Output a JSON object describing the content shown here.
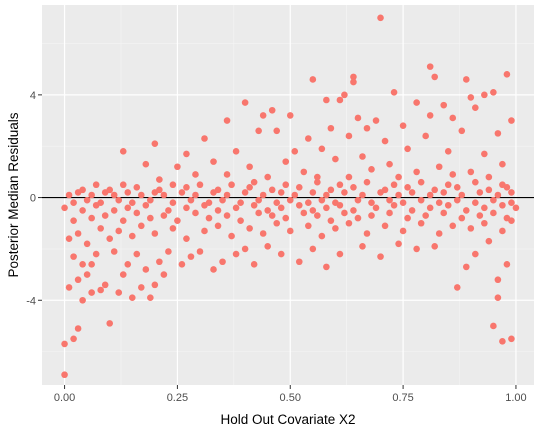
{
  "chart_data": {
    "type": "scatter",
    "title": "",
    "xlabel": "Hold Out Covariate X2",
    "ylabel": "Posterior Median Residuals",
    "xlim": [
      -0.05,
      1.04
    ],
    "ylim": [
      -7.3,
      7.5
    ],
    "x_ticks": [
      0.0,
      0.25,
      0.5,
      0.75,
      1.0
    ],
    "x_tick_labels": [
      "0.00",
      "0.25",
      "0.50",
      "0.75",
      "1.00"
    ],
    "y_ticks": [
      -4,
      0,
      4
    ],
    "y_tick_labels": [
      "-4",
      "0",
      "4"
    ],
    "minor_y_ticks": [
      -6,
      -2,
      2,
      6
    ],
    "minor_x_ticks": [
      0.125,
      0.375,
      0.625,
      0.875
    ],
    "grid": true,
    "reference_line_y": 0,
    "point_color": "#F8766D",
    "panel_color": "#EBEBEB",
    "reference_line_color": "#000000",
    "legend": "none",
    "series": [
      {
        "points": [
          [
            0.7,
            7.0
          ],
          [
            0.81,
            5.1
          ],
          [
            0.82,
            4.7
          ],
          [
            0.55,
            4.6
          ],
          [
            0.64,
            4.7
          ],
          [
            0.64,
            4.5
          ],
          [
            0.89,
            4.6
          ],
          [
            0.98,
            4.8
          ],
          [
            0.62,
            4.0
          ],
          [
            0.61,
            3.8
          ],
          [
            0.73,
            4.1
          ],
          [
            0.58,
            3.8
          ],
          [
            0.93,
            4.0
          ],
          [
            0.95,
            4.1
          ],
          [
            0.4,
            3.7
          ],
          [
            0.46,
            3.4
          ],
          [
            0.78,
            3.7
          ],
          [
            0.84,
            3.6
          ],
          [
            0.9,
            3.9
          ],
          [
            0.91,
            3.5
          ],
          [
            0.5,
            3.2
          ],
          [
            0.36,
            3.0
          ],
          [
            0.44,
            3.2
          ],
          [
            0.65,
            3.1
          ],
          [
            0.69,
            3.0
          ],
          [
            0.81,
            3.2
          ],
          [
            0.99,
            3.0
          ],
          [
            0.86,
            3.1
          ],
          [
            0.75,
            2.8
          ],
          [
            0.59,
            2.7
          ],
          [
            0.67,
            2.7
          ],
          [
            0.43,
            2.6
          ],
          [
            0.47,
            2.6
          ],
          [
            0.54,
            2.3
          ],
          [
            0.63,
            2.4
          ],
          [
            0.71,
            2.2
          ],
          [
            0.8,
            2.4
          ],
          [
            0.88,
            2.6
          ],
          [
            0.96,
            2.5
          ],
          [
            0.31,
            2.3
          ],
          [
            0.2,
            2.1
          ],
          [
            0.13,
            1.8
          ],
          [
            0.27,
            1.7
          ],
          [
            0.38,
            1.8
          ],
          [
            0.51,
            1.8
          ],
          [
            0.57,
            1.9
          ],
          [
            0.66,
            1.6
          ],
          [
            0.76,
            1.9
          ],
          [
            0.85,
            1.8
          ],
          [
            0.93,
            1.7
          ],
          [
            0.33,
            1.4
          ],
          [
            0.41,
            1.2
          ],
          [
            0.49,
            1.4
          ],
          [
            0.6,
            1.5
          ],
          [
            0.72,
            1.3
          ],
          [
            0.83,
            1.2
          ],
          [
            0.97,
            1.3
          ],
          [
            0.18,
            1.3
          ],
          [
            0.25,
            1.2
          ],
          [
            0.53,
            1.0
          ],
          [
            0.68,
            1.1
          ],
          [
            0.78,
            1.0
          ],
          [
            0.9,
            1.0
          ],
          [
            0.29,
            0.9
          ],
          [
            0.36,
            0.9
          ],
          [
            0.45,
            0.8
          ],
          [
            0.56,
            0.8
          ],
          [
            0.63,
            0.8
          ],
          [
            0.74,
            0.8
          ],
          [
            0.86,
            0.9
          ],
          [
            0.94,
            0.8
          ],
          [
            0.21,
            0.7
          ],
          [
            0.0,
            -6.9
          ],
          [
            0.0,
            -5.7
          ],
          [
            0.02,
            -5.5
          ],
          [
            0.03,
            -5.1
          ],
          [
            0.01,
            -3.5
          ],
          [
            0.04,
            -4.0
          ],
          [
            0.06,
            -3.7
          ],
          [
            0.08,
            -3.6
          ],
          [
            0.09,
            -3.4
          ],
          [
            0.1,
            -4.9
          ],
          [
            0.03,
            -3.2
          ],
          [
            0.05,
            -3.0
          ],
          [
            0.06,
            -2.6
          ],
          [
            0.04,
            -2.6
          ],
          [
            0.02,
            -2.3
          ],
          [
            0.07,
            -2.2
          ],
          [
            0.12,
            -3.7
          ],
          [
            0.13,
            -3.0
          ],
          [
            0.14,
            -2.6
          ],
          [
            0.15,
            -3.9
          ],
          [
            0.17,
            -3.5
          ],
          [
            0.18,
            -2.8
          ],
          [
            0.19,
            -3.9
          ],
          [
            0.2,
            -3.4
          ],
          [
            0.21,
            -2.5
          ],
          [
            0.22,
            -3.0
          ],
          [
            0.11,
            -2.1
          ],
          [
            0.16,
            -2.2
          ],
          [
            0.23,
            -2.1
          ],
          [
            0.26,
            -2.6
          ],
          [
            0.28,
            -2.3
          ],
          [
            0.3,
            -2.1
          ],
          [
            0.33,
            -2.8
          ],
          [
            0.35,
            -2.5
          ],
          [
            0.38,
            -2.2
          ],
          [
            0.4,
            -2.0
          ],
          [
            0.42,
            -2.6
          ],
          [
            0.45,
            -1.9
          ],
          [
            0.48,
            -2.2
          ],
          [
            0.52,
            -2.5
          ],
          [
            0.55,
            -2.0
          ],
          [
            0.58,
            -2.7
          ],
          [
            0.61,
            -2.2
          ],
          [
            0.66,
            -1.9
          ],
          [
            0.7,
            -2.3
          ],
          [
            0.74,
            -1.8
          ],
          [
            0.78,
            -2.0
          ],
          [
            0.82,
            -1.9
          ],
          [
            0.87,
            -3.5
          ],
          [
            0.89,
            -2.7
          ],
          [
            0.91,
            -2.2
          ],
          [
            0.94,
            -1.7
          ],
          [
            0.95,
            -5.0
          ],
          [
            0.96,
            -3.2
          ],
          [
            0.97,
            -5.6
          ],
          [
            0.98,
            -2.6
          ],
          [
            0.99,
            -5.5
          ],
          [
            0.96,
            -3.9
          ],
          [
            0.01,
            -1.6
          ],
          [
            0.03,
            -1.4
          ],
          [
            0.05,
            -1.8
          ],
          [
            0.08,
            -1.2
          ],
          [
            0.1,
            -1.6
          ],
          [
            0.12,
            -1.3
          ],
          [
            0.15,
            -1.5
          ],
          [
            0.17,
            -1.1
          ],
          [
            0.2,
            -1.4
          ],
          [
            0.24,
            -1.2
          ],
          [
            0.27,
            -1.6
          ],
          [
            0.31,
            -1.3
          ],
          [
            0.34,
            -1.1
          ],
          [
            0.37,
            -1.5
          ],
          [
            0.41,
            -1.2
          ],
          [
            0.44,
            -1.4
          ],
          [
            0.47,
            -1.0
          ],
          [
            0.5,
            -1.3
          ],
          [
            0.54,
            -1.1
          ],
          [
            0.57,
            -1.5
          ],
          [
            0.6,
            -1.2
          ],
          [
            0.63,
            -1.0
          ],
          [
            0.67,
            -1.4
          ],
          [
            0.71,
            -1.1
          ],
          [
            0.75,
            -1.3
          ],
          [
            0.79,
            -1.0
          ],
          [
            0.83,
            -1.4
          ],
          [
            0.86,
            -1.1
          ],
          [
            0.9,
            -1.2
          ],
          [
            0.93,
            -1.0
          ],
          [
            0.97,
            -1.3
          ],
          [
            0.99,
            -0.9
          ],
          [
            0.02,
            -0.9
          ],
          [
            0.06,
            -0.8
          ],
          [
            0.09,
            -0.7
          ],
          [
            0.13,
            -0.9
          ],
          [
            0.16,
            -0.6
          ],
          [
            0.19,
            -0.8
          ],
          [
            0.22,
            -0.7
          ],
          [
            0.25,
            -0.9
          ],
          [
            0.29,
            -0.6
          ],
          [
            0.32,
            -0.8
          ],
          [
            0.36,
            -0.7
          ],
          [
            0.39,
            -0.9
          ],
          [
            0.43,
            -0.6
          ],
          [
            0.46,
            -0.7
          ],
          [
            0.49,
            -0.8
          ],
          [
            0.53,
            -0.6
          ],
          [
            0.56,
            -0.7
          ],
          [
            0.59,
            -0.9
          ],
          [
            0.62,
            -0.6
          ],
          [
            0.65,
            -0.8
          ],
          [
            0.68,
            -0.7
          ],
          [
            0.72,
            -0.6
          ],
          [
            0.76,
            -0.8
          ],
          [
            0.8,
            -0.7
          ],
          [
            0.84,
            -0.6
          ],
          [
            0.88,
            -0.8
          ],
          [
            0.92,
            -0.7
          ],
          [
            0.95,
            -0.6
          ],
          [
            0.98,
            -0.8
          ],
          [
            0.0,
            -0.4
          ],
          [
            0.04,
            -0.5
          ],
          [
            0.07,
            -0.3
          ],
          [
            0.11,
            -0.5
          ],
          [
            0.14,
            -0.4
          ],
          [
            0.18,
            -0.3
          ],
          [
            0.23,
            -0.5
          ],
          [
            0.27,
            -0.4
          ],
          [
            0.31,
            -0.3
          ],
          [
            0.34,
            -0.5
          ],
          [
            0.38,
            -0.4
          ],
          [
            0.42,
            -0.3
          ],
          [
            0.45,
            -0.5
          ],
          [
            0.48,
            -0.4
          ],
          [
            0.52,
            -0.3
          ],
          [
            0.55,
            -0.5
          ],
          [
            0.58,
            -0.4
          ],
          [
            0.61,
            -0.3
          ],
          [
            0.64,
            -0.5
          ],
          [
            0.69,
            -0.4
          ],
          [
            0.73,
            -0.3
          ],
          [
            0.77,
            -0.5
          ],
          [
            0.81,
            -0.4
          ],
          [
            0.85,
            -0.3
          ],
          [
            0.89,
            -0.5
          ],
          [
            0.93,
            -0.4
          ],
          [
            0.97,
            -0.3
          ],
          [
            1.0,
            -0.4
          ],
          [
            0.02,
            -0.2
          ],
          [
            0.05,
            -0.1
          ],
          [
            0.08,
            -0.2
          ],
          [
            0.12,
            -0.1
          ],
          [
            0.15,
            -0.2
          ],
          [
            0.19,
            -0.1
          ],
          [
            0.24,
            -0.2
          ],
          [
            0.28,
            -0.1
          ],
          [
            0.32,
            -0.2
          ],
          [
            0.35,
            -0.1
          ],
          [
            0.39,
            -0.2
          ],
          [
            0.43,
            -0.1
          ],
          [
            0.47,
            -0.2
          ],
          [
            0.5,
            -0.1
          ],
          [
            0.54,
            -0.2
          ],
          [
            0.57,
            -0.1
          ],
          [
            0.6,
            -0.2
          ],
          [
            0.65,
            -0.1
          ],
          [
            0.68,
            -0.2
          ],
          [
            0.72,
            -0.1
          ],
          [
            0.75,
            -0.2
          ],
          [
            0.79,
            -0.1
          ],
          [
            0.83,
            -0.2
          ],
          [
            0.87,
            -0.1
          ],
          [
            0.91,
            -0.2
          ],
          [
            0.95,
            -0.1
          ],
          [
            0.99,
            -0.2
          ],
          [
            0.01,
            0.1
          ],
          [
            0.03,
            0.2
          ],
          [
            0.06,
            0.1
          ],
          [
            0.09,
            0.2
          ],
          [
            0.11,
            0.1
          ],
          [
            0.14,
            0.2
          ],
          [
            0.17,
            0.1
          ],
          [
            0.2,
            0.2
          ],
          [
            0.22,
            0.1
          ],
          [
            0.26,
            0.2
          ],
          [
            0.29,
            0.1
          ],
          [
            0.33,
            0.2
          ],
          [
            0.36,
            0.1
          ],
          [
            0.4,
            0.2
          ],
          [
            0.44,
            0.1
          ],
          [
            0.48,
            0.2
          ],
          [
            0.51,
            0.1
          ],
          [
            0.55,
            0.2
          ],
          [
            0.58,
            0.1
          ],
          [
            0.62,
            0.2
          ],
          [
            0.66,
            0.1
          ],
          [
            0.7,
            0.2
          ],
          [
            0.74,
            0.1
          ],
          [
            0.77,
            0.2
          ],
          [
            0.81,
            0.1
          ],
          [
            0.84,
            0.2
          ],
          [
            0.88,
            0.1
          ],
          [
            0.92,
            0.2
          ],
          [
            0.96,
            0.1
          ],
          [
            0.99,
            0.2
          ],
          [
            0.04,
            0.3
          ],
          [
            0.1,
            0.3
          ],
          [
            0.16,
            0.4
          ],
          [
            0.21,
            0.3
          ],
          [
            0.27,
            0.4
          ],
          [
            0.34,
            0.3
          ],
          [
            0.41,
            0.4
          ],
          [
            0.46,
            0.3
          ],
          [
            0.52,
            0.4
          ],
          [
            0.59,
            0.3
          ],
          [
            0.64,
            0.4
          ],
          [
            0.71,
            0.3
          ],
          [
            0.76,
            0.4
          ],
          [
            0.82,
            0.3
          ],
          [
            0.87,
            0.4
          ],
          [
            0.94,
            0.3
          ],
          [
            0.98,
            0.4
          ],
          [
            0.07,
            0.5
          ],
          [
            0.13,
            0.5
          ],
          [
            0.24,
            0.5
          ],
          [
            0.3,
            0.5
          ],
          [
            0.37,
            0.5
          ],
          [
            0.42,
            0.6
          ],
          [
            0.49,
            0.5
          ],
          [
            0.56,
            0.6
          ],
          [
            0.61,
            0.5
          ],
          [
            0.67,
            0.6
          ],
          [
            0.73,
            0.5
          ],
          [
            0.79,
            0.6
          ],
          [
            0.85,
            0.5
          ],
          [
            0.91,
            0.6
          ],
          [
            0.97,
            0.5
          ]
        ]
      }
    ]
  }
}
